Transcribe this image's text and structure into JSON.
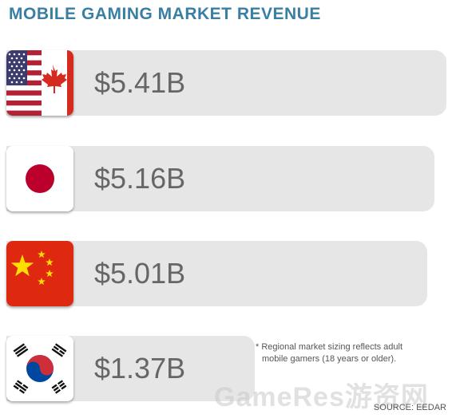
{
  "chart_data": {
    "type": "bar",
    "title": "MOBILE GAMING MARKET REVENUE",
    "categories": [
      "US & Canada",
      "Japan",
      "China",
      "South Korea"
    ],
    "values": [
      5.41,
      5.16,
      5.01,
      1.37
    ],
    "value_labels": [
      "$5.41B",
      "$5.16B",
      "$5.01B",
      "$1.37B"
    ],
    "unit": "$B",
    "xlim": [
      0,
      5.41
    ],
    "orientation": "horizontal",
    "grid": false,
    "bar_color": "#e6e6e6",
    "label_color": "#666666"
  },
  "footnote": {
    "line1": "* Regional market sizing reflects adult",
    "line2": "mobile gamers (18 years or older)."
  },
  "watermark": "GameRes游资网",
  "source": "SOURCE: EEDAR",
  "colors": {
    "title": "#3a7fa3",
    "china_red": "#de2910",
    "china_star": "#ffde00",
    "japan_red": "#bc002d",
    "us_red": "#b22234",
    "us_blue": "#3c3b6e",
    "canada_red": "#d52b1e",
    "korea_red": "#cd2e3a",
    "korea_blue": "#0047a0"
  },
  "icons": [
    "us-canada-flag-icon",
    "japan-flag-icon",
    "china-flag-icon",
    "south-korea-flag-icon"
  ]
}
